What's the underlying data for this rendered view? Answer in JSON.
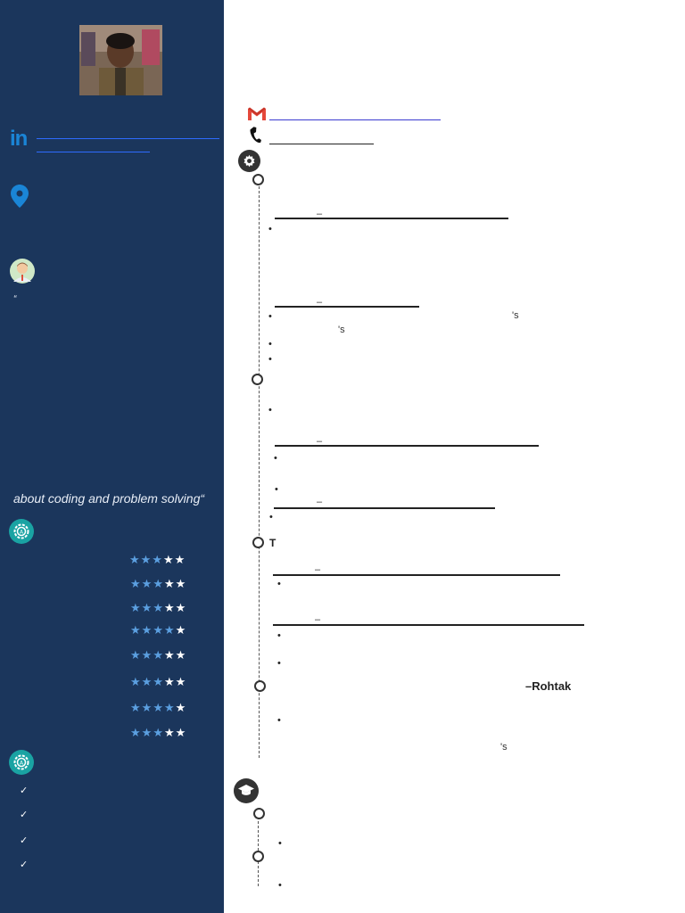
{
  "sidebar": {
    "quote_open": "“",
    "quote_tail": "about coding and problem solving“",
    "skills": [
      {
        "rating": 3
      },
      {
        "rating": 3
      },
      {
        "rating": 3
      },
      {
        "rating": 4
      },
      {
        "rating": 3
      },
      {
        "rating": 3
      },
      {
        "rating": 4
      },
      {
        "rating": 3
      }
    ],
    "checklist": [
      "✓",
      "✓",
      "✓",
      "✓"
    ]
  },
  "main": {
    "experience": {
      "role_dashes": [
        "–",
        "–",
        "–",
        "–",
        "–",
        "–"
      ],
      "possessive_1a": "'s",
      "possessive_1b": "'s",
      "letter_t": "T",
      "location": "–Rohtak",
      "possessive_2": "'s",
      "bullet": "•"
    }
  },
  "colors": {
    "sidebar_bg": "#1b365c",
    "accent_teal": "#1aa3a3",
    "star_on": "#5b9fe0",
    "star_off": "#ffffff",
    "link_blue": "#2e6bff",
    "linkedin_blue": "#1a85d6",
    "location_blue": "#1a85d6"
  }
}
